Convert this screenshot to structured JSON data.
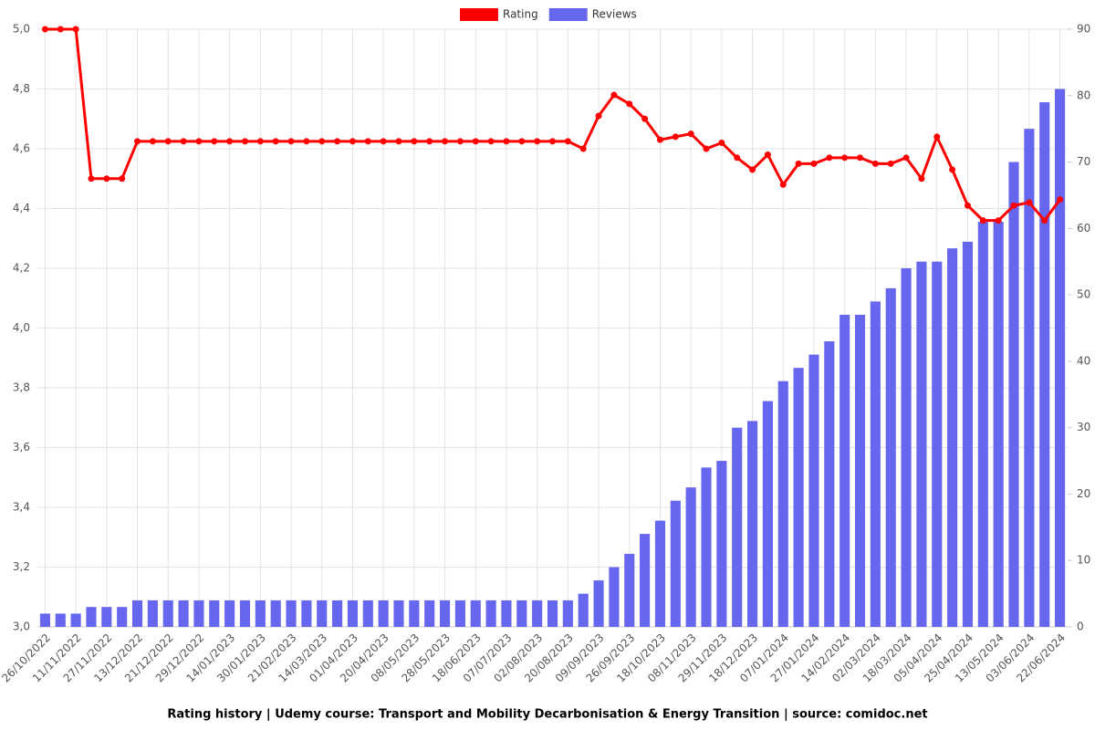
{
  "chart_data": {
    "type": "combo",
    "title": "Rating history | Udemy course: Transport and Mobility Decarbonisation & Energy Transition | source: comidoc.net",
    "categories": [
      "26/10/2022",
      null,
      "11/11/2022",
      null,
      "27/11/2022",
      null,
      "13/12/2022",
      null,
      "21/12/2022",
      null,
      "29/12/2022",
      null,
      "14/01/2023",
      null,
      "30/01/2023",
      null,
      "21/02/2023",
      null,
      "14/03/2023",
      null,
      "01/04/2023",
      null,
      "20/04/2023",
      null,
      "08/05/2023",
      null,
      "28/05/2023",
      null,
      "18/06/2023",
      null,
      "07/07/2023",
      null,
      "02/08/2023",
      null,
      "20/08/2023",
      null,
      "09/09/2023",
      null,
      "26/09/2023",
      null,
      "18/10/2023",
      null,
      "08/11/2023",
      null,
      "29/11/2023",
      null,
      "18/12/2023",
      null,
      "07/01/2024",
      null,
      "27/01/2024",
      null,
      "14/02/2024",
      null,
      "02/03/2024",
      null,
      "18/03/2024",
      null,
      "05/04/2024",
      null,
      "25/04/2024",
      null,
      "13/05/2024",
      null,
      "03/06/2024",
      null,
      "22/06/2024"
    ],
    "series": [
      {
        "name": "Rating",
        "type": "line",
        "color": "#ff0000",
        "values": [
          5.0,
          5.0,
          5.0,
          4.5,
          4.5,
          4.5,
          4.625,
          4.625,
          4.625,
          4.625,
          4.625,
          4.625,
          4.625,
          4.625,
          4.625,
          4.625,
          4.625,
          4.625,
          4.625,
          4.625,
          4.625,
          4.625,
          4.625,
          4.625,
          4.625,
          4.625,
          4.625,
          4.625,
          4.625,
          4.625,
          4.625,
          4.625,
          4.625,
          4.625,
          4.625,
          4.6,
          4.71,
          4.78,
          4.75,
          4.7,
          4.63,
          4.64,
          4.65,
          4.6,
          4.62,
          4.57,
          4.53,
          4.58,
          4.48,
          4.55,
          4.55,
          4.57,
          4.57,
          4.57,
          4.55,
          4.55,
          4.57,
          4.5,
          4.64,
          4.53,
          4.41,
          4.36,
          4.36,
          4.41,
          4.42,
          4.36,
          4.43
        ]
      },
      {
        "name": "Reviews",
        "type": "bar",
        "axis": "y2",
        "color": "#6666ee",
        "values": [
          2,
          2,
          2,
          3,
          3,
          3,
          4,
          4,
          4,
          4,
          4,
          4,
          4,
          4,
          4,
          4,
          4,
          4,
          4,
          4,
          4,
          4,
          4,
          4,
          4,
          4,
          4,
          4,
          4,
          4,
          4,
          4,
          4,
          4,
          4,
          5,
          7,
          9,
          11,
          14,
          16,
          19,
          21,
          24,
          25,
          30,
          31,
          34,
          37,
          39,
          41,
          43,
          47,
          47,
          49,
          51,
          54,
          55,
          55,
          57,
          58,
          61,
          61,
          70,
          75,
          79,
          81
        ]
      }
    ],
    "ylim": [
      3.0,
      5.0
    ],
    "yticks": [
      {
        "value": 3.0,
        "label": "3,0"
      },
      {
        "value": 3.2,
        "label": "3,2"
      },
      {
        "value": 3.4,
        "label": "3,4"
      },
      {
        "value": 3.6,
        "label": "3,6"
      },
      {
        "value": 3.8,
        "label": "3,8"
      },
      {
        "value": 4.0,
        "label": "4,0"
      },
      {
        "value": 4.2,
        "label": "4,2"
      },
      {
        "value": 4.4,
        "label": "4,4"
      },
      {
        "value": 4.6,
        "label": "4,6"
      },
      {
        "value": 4.8,
        "label": "4,8"
      },
      {
        "value": 5.0,
        "label": "5,0"
      }
    ],
    "y2lim": [
      0,
      90
    ],
    "y2ticks": [
      0,
      10,
      20,
      30,
      40,
      50,
      60,
      70,
      80,
      90
    ],
    "grid": true,
    "legend": "top"
  }
}
